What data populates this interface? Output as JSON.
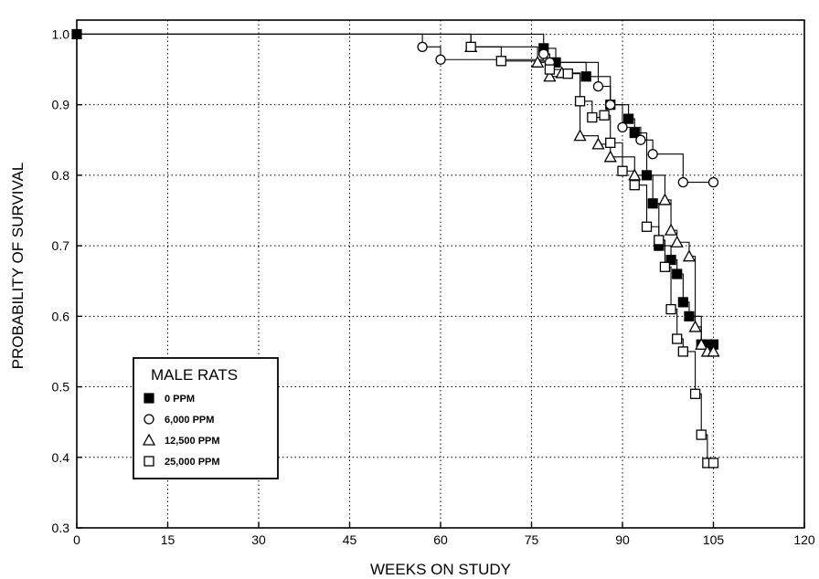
{
  "chart_data": {
    "type": "line",
    "xlabel": "WEEKS ON STUDY",
    "ylabel": "PROBABILITY OF SURVIVAL",
    "xlim": [
      0,
      120
    ],
    "ylim": [
      0.3,
      1.02
    ],
    "x_ticks": [
      0,
      15,
      30,
      45,
      60,
      75,
      90,
      105,
      120
    ],
    "x_tick_labels": [
      "0",
      "15",
      "30",
      "45",
      "60",
      "75",
      "90",
      "105",
      "120"
    ],
    "y_ticks": [
      0.3,
      0.4,
      0.5,
      0.6,
      0.7,
      0.8,
      0.9,
      1.0
    ],
    "y_tick_labels": [
      "0.3",
      "0.4",
      "0.5",
      "0.6",
      "0.7",
      "0.8",
      "0.9",
      "1.0"
    ],
    "grid": true,
    "legend": {
      "title": "MALE RATS",
      "position": "bottom-left"
    },
    "series": [
      {
        "name": "0 PPM",
        "marker": "filled-square",
        "points": [
          [
            0,
            1.0
          ],
          [
            77,
            0.98
          ],
          [
            79,
            0.96
          ],
          [
            84,
            0.94
          ],
          [
            88,
            0.9
          ],
          [
            91,
            0.88
          ],
          [
            92,
            0.86
          ],
          [
            94,
            0.8
          ],
          [
            95,
            0.76
          ],
          [
            96,
            0.7
          ],
          [
            98,
            0.68
          ],
          [
            99,
            0.66
          ],
          [
            100,
            0.62
          ],
          [
            101,
            0.6
          ],
          [
            103,
            0.56
          ],
          [
            104,
            0.56
          ],
          [
            105,
            0.56
          ]
        ]
      },
      {
        "name": "6,000 PPM",
        "marker": "open-circle",
        "points": [
          [
            0,
            1.0
          ],
          [
            57,
            0.982
          ],
          [
            60,
            0.964
          ],
          [
            77,
            0.972
          ],
          [
            78,
            0.96
          ],
          [
            86,
            0.926
          ],
          [
            88,
            0.9
          ],
          [
            90,
            0.868
          ],
          [
            93,
            0.85
          ],
          [
            95,
            0.83
          ],
          [
            100,
            0.79
          ],
          [
            105,
            0.79
          ]
        ]
      },
      {
        "name": "12,500 PPM",
        "marker": "open-triangle",
        "points": [
          [
            0,
            1.0
          ],
          [
            65,
            0.982
          ],
          [
            76,
            0.96
          ],
          [
            78,
            0.94
          ],
          [
            80,
            0.945
          ],
          [
            83,
            0.856
          ],
          [
            86,
            0.844
          ],
          [
            88,
            0.826
          ],
          [
            92,
            0.8
          ],
          [
            97,
            0.765
          ],
          [
            98,
            0.722
          ],
          [
            99,
            0.705
          ],
          [
            101,
            0.685
          ],
          [
            102,
            0.585
          ],
          [
            103,
            0.56
          ],
          [
            104,
            0.55
          ],
          [
            105,
            0.55
          ]
        ]
      },
      {
        "name": "25,000 PPM",
        "marker": "open-square",
        "points": [
          [
            0,
            1.0
          ],
          [
            65,
            0.982
          ],
          [
            70,
            0.962
          ],
          [
            78,
            0.95
          ],
          [
            81,
            0.944
          ],
          [
            83,
            0.905
          ],
          [
            85,
            0.882
          ],
          [
            87,
            0.885
          ],
          [
            88,
            0.846
          ],
          [
            90,
            0.806
          ],
          [
            92,
            0.786
          ],
          [
            94,
            0.727
          ],
          [
            96,
            0.708
          ],
          [
            97,
            0.67
          ],
          [
            98,
            0.61
          ],
          [
            99,
            0.568
          ],
          [
            100,
            0.55
          ],
          [
            102,
            0.49
          ],
          [
            103,
            0.432
          ],
          [
            104,
            0.392
          ],
          [
            105,
            0.392
          ]
        ]
      }
    ]
  }
}
